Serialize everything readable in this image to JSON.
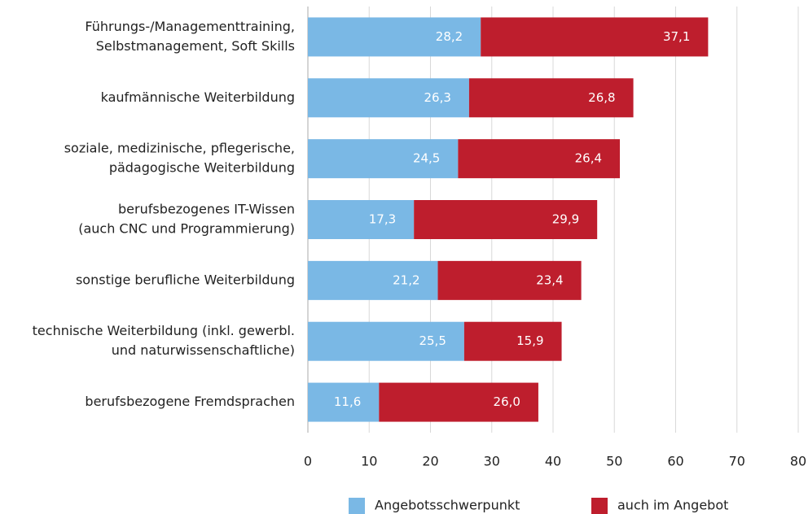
{
  "chart_data": {
    "type": "stacked-bar-horizontal",
    "categories": [
      [
        "Führungs-/Managementtraining,",
        "Selbstmanagement, Soft Skills"
      ],
      [
        "kaufmännische Weiterbildung"
      ],
      [
        "soziale, medizinische, pflegerische,",
        "pädagogische Weiterbildung"
      ],
      [
        "berufsbezogenes IT-Wissen",
        "(auch CNC und Programmierung)"
      ],
      [
        "sonstige berufliche Weiterbildung"
      ],
      [
        "technische Weiterbildung (inkl. gewerbl.",
        "und naturwissenschaftliche)"
      ],
      [
        "berufsbezogene Fremdsprachen"
      ]
    ],
    "series": [
      {
        "name": "Angebotsschwerpunkt",
        "color": "#7ab8e5",
        "values": [
          28.2,
          26.3,
          24.5,
          17.3,
          21.2,
          25.5,
          11.6
        ],
        "value_labels": [
          "28,2",
          "26,3",
          "24,5",
          "17,3",
          "21,2",
          "25,5",
          "11,6"
        ]
      },
      {
        "name": "auch im Angebot",
        "color": "#be1e2d",
        "values": [
          37.1,
          26.8,
          26.4,
          29.9,
          23.4,
          15.9,
          26.0
        ],
        "value_labels": [
          "37,1",
          "26,8",
          "26,4",
          "29,9",
          "23,4",
          "15,9",
          "26,0"
        ]
      }
    ],
    "xlim": [
      0,
      80
    ],
    "xticks": [
      0,
      10,
      20,
      30,
      40,
      50,
      60,
      70,
      80
    ],
    "grid": true,
    "legend": "bottom"
  }
}
